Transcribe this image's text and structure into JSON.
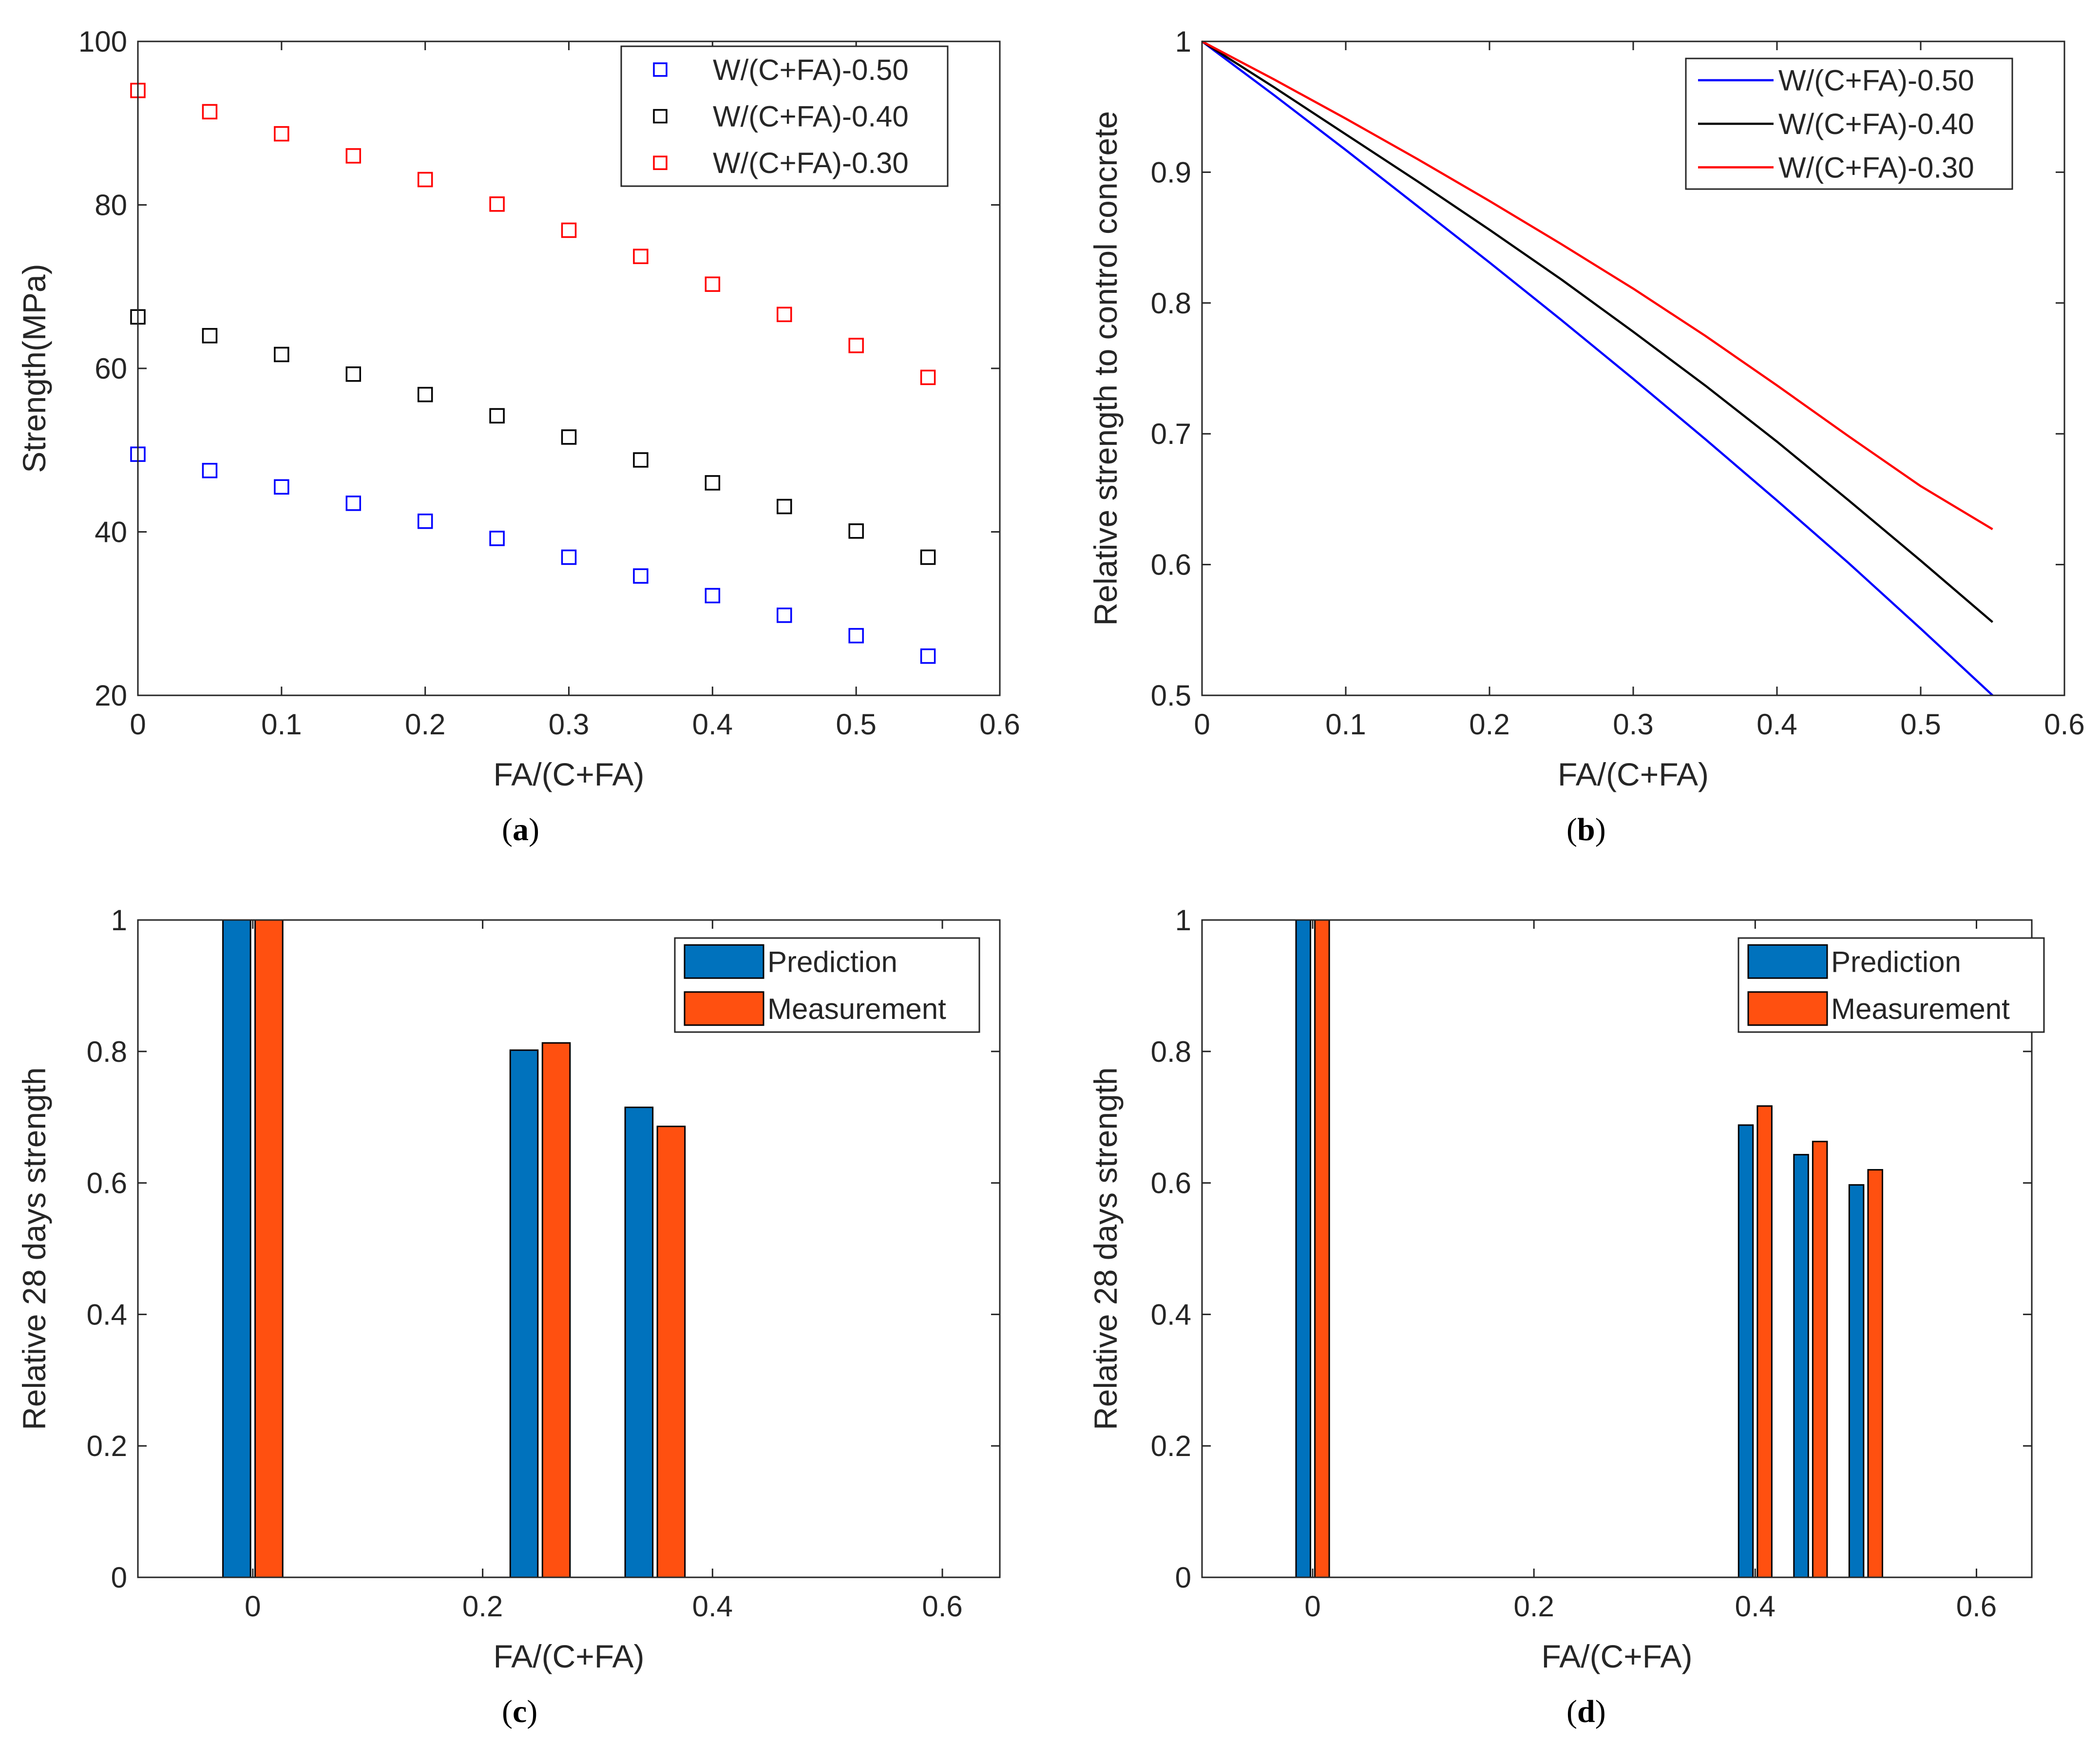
{
  "chart_data": [
    {
      "id": "a",
      "type": "scatter",
      "caption": "a",
      "xlabel": "FA/(C+FA)",
      "ylabel": "Strength(MPa)",
      "xlim": [
        0,
        0.6
      ],
      "ylim": [
        20,
        100
      ],
      "xticks": [
        0,
        0.1,
        0.2,
        0.3,
        0.4,
        0.5,
        0.6
      ],
      "xtick_labels": [
        "0",
        "0.1",
        "0.2",
        "0.3",
        "0.4",
        "0.5",
        "0.6"
      ],
      "yticks": [
        20,
        40,
        60,
        80,
        100
      ],
      "ytick_labels": [
        "20",
        "40",
        "60",
        "80",
        "100"
      ],
      "legend_position": "top-right",
      "x": [
        0,
        0.05,
        0.1,
        0.15,
        0.2,
        0.25,
        0.3,
        0.35,
        0.4,
        0.45,
        0.5,
        0.55
      ],
      "series": [
        {
          "name": "W/(C+FA)-0.50",
          "color": "#0000ff",
          "values": [
            49.5,
            47.5,
            45.5,
            43.5,
            41.3,
            39.2,
            36.9,
            34.6,
            32.2,
            29.8,
            27.3,
            24.8
          ]
        },
        {
          "name": "W/(C+FA)-0.40",
          "color": "#000000",
          "values": [
            66.3,
            64.0,
            61.7,
            59.3,
            56.8,
            54.2,
            51.6,
            48.8,
            46.0,
            43.1,
            40.1,
            36.9
          ]
        },
        {
          "name": "W/(C+FA)-0.30",
          "color": "#ff0000",
          "values": [
            94.0,
            91.4,
            88.7,
            86.0,
            83.1,
            80.1,
            76.9,
            73.7,
            70.3,
            66.6,
            62.8,
            58.9
          ]
        }
      ]
    },
    {
      "id": "b",
      "type": "line",
      "caption": "b",
      "xlabel": "FA/(C+FA)",
      "ylabel": "Relative strength to control concrete",
      "xlim": [
        0,
        0.6
      ],
      "ylim": [
        0.5,
        1
      ],
      "xticks": [
        0,
        0.1,
        0.2,
        0.3,
        0.4,
        0.5,
        0.6
      ],
      "xtick_labels": [
        "0",
        "0.1",
        "0.2",
        "0.3",
        "0.4",
        "0.5",
        "0.6"
      ],
      "yticks": [
        0.5,
        0.6,
        0.7,
        0.8,
        0.9,
        1
      ],
      "ytick_labels": [
        "0.5",
        "0.6",
        "0.7",
        "0.8",
        "0.9",
        "1"
      ],
      "legend_position": "top-right",
      "x": [
        0,
        0.05,
        0.1,
        0.15,
        0.2,
        0.25,
        0.3,
        0.35,
        0.4,
        0.45,
        0.5,
        0.55
      ],
      "series": [
        {
          "name": "W/(C+FA)-0.50",
          "color": "#0000ff",
          "values": [
            1.0,
            0.959,
            0.917,
            0.874,
            0.831,
            0.787,
            0.742,
            0.696,
            0.649,
            0.601,
            0.551,
            0.5
          ]
        },
        {
          "name": "W/(C+FA)-0.40",
          "color": "#000000",
          "values": [
            1.0,
            0.965,
            0.929,
            0.893,
            0.856,
            0.818,
            0.778,
            0.737,
            0.694,
            0.649,
            0.603,
            0.556
          ]
        },
        {
          "name": "W/(C+FA)-0.30",
          "color": "#ff0000",
          "values": [
            1.0,
            0.971,
            0.941,
            0.91,
            0.878,
            0.845,
            0.811,
            0.775,
            0.737,
            0.698,
            0.66,
            0.627
          ]
        }
      ]
    },
    {
      "id": "c",
      "type": "bar",
      "caption": "c",
      "xlabel": "FA/(C+FA)",
      "ylabel": "Relative 28 days strength",
      "xlim": [
        -0.1,
        0.65
      ],
      "ylim": [
        0,
        1
      ],
      "xticks": [
        0,
        0.2,
        0.4,
        0.6
      ],
      "xtick_labels": [
        "0",
        "0.2",
        "0.4",
        "0.6"
      ],
      "yticks": [
        0,
        0.2,
        0.4,
        0.6,
        0.8,
        1
      ],
      "ytick_labels": [
        "0",
        "0.2",
        "0.4",
        "0.6",
        "0.8",
        "1"
      ],
      "legend_position": "top-right",
      "bar_width": 0.024,
      "x": [
        0,
        0.25,
        0.35
      ],
      "series": [
        {
          "name": "Prediction",
          "color": "#0072bd",
          "values": [
            1.0,
            0.802,
            0.715
          ]
        },
        {
          "name": "Measurement",
          "color": "#ff5010",
          "values": [
            1.0,
            0.813,
            0.686
          ]
        }
      ]
    },
    {
      "id": "d",
      "type": "bar",
      "caption": "d",
      "xlabel": "FA/(C+FA)",
      "ylabel": "Relative 28 days strength",
      "xlim": [
        -0.1,
        0.65
      ],
      "ylim": [
        0,
        1
      ],
      "xticks": [
        0,
        0.2,
        0.4,
        0.6
      ],
      "xtick_labels": [
        "0",
        "0.2",
        "0.4",
        "0.6"
      ],
      "yticks": [
        0,
        0.2,
        0.4,
        0.6,
        0.8,
        1
      ],
      "ytick_labels": [
        "0",
        "0.2",
        "0.4",
        "0.6",
        "0.8",
        "1"
      ],
      "legend_position": "top-right",
      "bar_width": 0.013,
      "x": [
        0,
        0.4,
        0.45,
        0.5
      ],
      "series": [
        {
          "name": "Prediction",
          "color": "#0072bd",
          "values": [
            1.0,
            0.688,
            0.643,
            0.597
          ]
        },
        {
          "name": "Measurement",
          "color": "#ff5010",
          "values": [
            1.0,
            0.717,
            0.663,
            0.62
          ]
        }
      ]
    }
  ]
}
